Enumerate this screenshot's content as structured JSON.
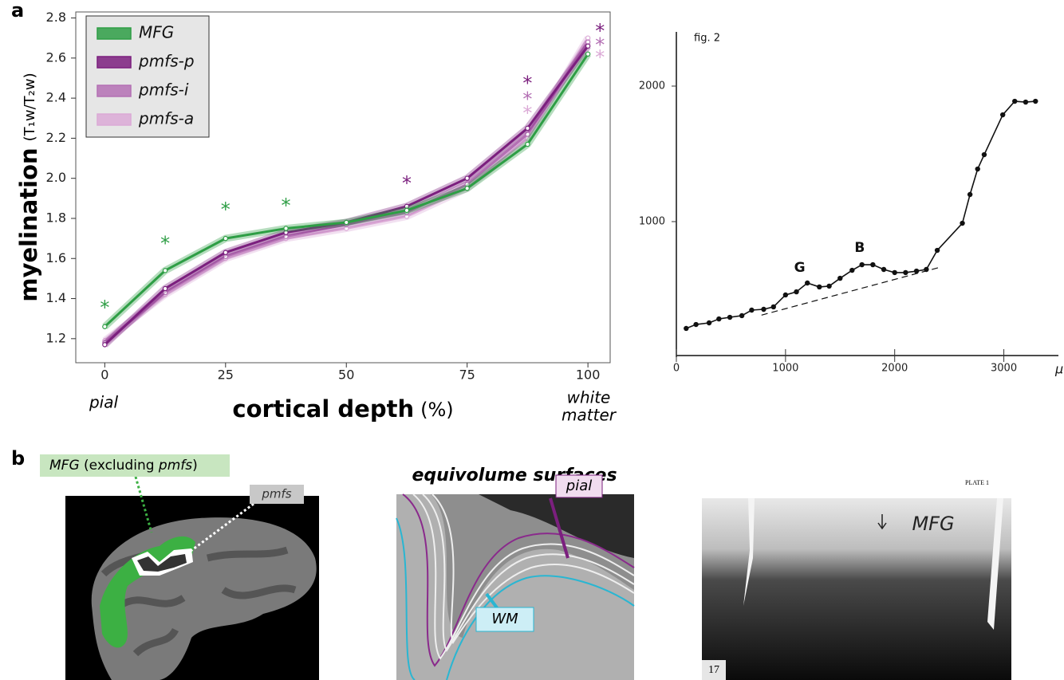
{
  "panel_labels": [
    "a",
    "b"
  ],
  "chart_data": [
    {
      "type": "line",
      "x_label": "cortical depth",
      "x_label_unit": "(%)",
      "y_label": "myelination",
      "y_label_unit": "(T₁w/T₂w)",
      "x_end_labels": {
        "left": "pial",
        "right": [
          "white",
          "matter"
        ]
      },
      "x": [
        0,
        12.5,
        25,
        37.5,
        50,
        62.5,
        75,
        87.5,
        100
      ],
      "series": [
        {
          "name": "MFG",
          "color": "#2e9e45",
          "values": [
            1.26,
            1.54,
            1.7,
            1.75,
            1.78,
            1.84,
            1.95,
            2.17,
            2.62
          ]
        },
        {
          "name": "pmfs-p",
          "color": "#7b1f7e",
          "values": [
            1.17,
            1.45,
            1.63,
            1.73,
            1.78,
            1.86,
            2.0,
            2.25,
            2.66
          ]
        },
        {
          "name": "pmfs-i",
          "color": "#b470b4",
          "values": [
            1.18,
            1.43,
            1.61,
            1.71,
            1.77,
            1.83,
            1.97,
            2.22,
            2.68
          ]
        },
        {
          "name": "pmfs-a",
          "color": "#dba9d6",
          "values": [
            1.19,
            1.42,
            1.6,
            1.7,
            1.75,
            1.81,
            1.95,
            2.2,
            2.7
          ]
        }
      ],
      "annotations": [
        {
          "text": "*",
          "x": 0,
          "y": 1.37,
          "color": "#2e9e45"
        },
        {
          "text": "*",
          "x": 12.5,
          "y": 1.69,
          "color": "#2e9e45"
        },
        {
          "text": "*",
          "x": 25,
          "y": 1.86,
          "color": "#2e9e45"
        },
        {
          "text": "*",
          "x": 37.5,
          "y": 1.88,
          "color": "#2e9e45"
        },
        {
          "text": "*",
          "x": 62.5,
          "y": 1.99,
          "color": "#7b1f7e"
        },
        {
          "text": "*",
          "x": 87.5,
          "y": 2.49,
          "color": "#7b1f7e"
        },
        {
          "text": "*",
          "x": 87.5,
          "y": 2.41,
          "color": "#b470b4"
        },
        {
          "text": "*",
          "x": 87.5,
          "y": 2.34,
          "color": "#dba9d6"
        },
        {
          "text": "*",
          "x": 102.5,
          "y": 2.75,
          "color": "#7b1f7e"
        },
        {
          "text": "*",
          "x": 102.5,
          "y": 2.68,
          "color": "#b470b4"
        },
        {
          "text": "*",
          "x": 102.5,
          "y": 2.62,
          "color": "#dba9d6"
        }
      ],
      "xlim": [
        -6,
        104.6
      ],
      "xticks": [
        0,
        25,
        50,
        75,
        100
      ],
      "ylim": [
        1.08,
        2.83
      ],
      "yticks": [
        1.2,
        1.4,
        1.6,
        1.8,
        {
          "value": 2,
          "label": "2.0"
        },
        2.2,
        2.4,
        2.6,
        2.8
      ],
      "legend": "upper-left",
      "grid": false
    },
    {
      "type": "line",
      "title": "fig. 2",
      "x_unit": "μ",
      "color": "#111111",
      "x": [
        90,
        180,
        300,
        390,
        490,
        600,
        690,
        800,
        890,
        1000,
        1100,
        1200,
        1310,
        1400,
        1500,
        1610,
        1700,
        1800,
        1900,
        2000,
        2100,
        2200,
        2290,
        2390,
        2620,
        2690,
        2760,
        2820,
        2990,
        3100,
        3200,
        3290
      ],
      "values": [
        212,
        241,
        253,
        282,
        294,
        306,
        347,
        353,
        371,
        459,
        482,
        547,
        518,
        524,
        582,
        641,
        682,
        682,
        647,
        624,
        624,
        635,
        647,
        788,
        988,
        1200,
        1388,
        1494,
        1788,
        1888,
        1882,
        1888
      ],
      "trend_line": {
        "x": [
          780,
          2400
        ],
        "values": [
          310,
          660
        ]
      },
      "annotations": [
        {
          "text": "G",
          "x": 1130,
          "y": 660
        },
        {
          "text": "B",
          "x": 1680,
          "y": 805
        }
      ],
      "xlim": [
        0,
        3500
      ],
      "xticks": [
        0,
        1000,
        2000,
        3000
      ],
      "ylim": [
        0,
        2400
      ],
      "yticks": [
        1000,
        2000
      ],
      "grid": false
    }
  ],
  "panel_b": {
    "brain": {
      "label_parts": [
        "MFG",
        " (excluding ",
        "pmfs",
        ")"
      ],
      "pmfs_label": "pmfs"
    },
    "surfaces": {
      "title": "equivolume surfaces",
      "pial": "pial",
      "wm": "WM"
    },
    "histology": {
      "plate": "PLATE 1",
      "label": "MFG",
      "number": "17"
    }
  }
}
